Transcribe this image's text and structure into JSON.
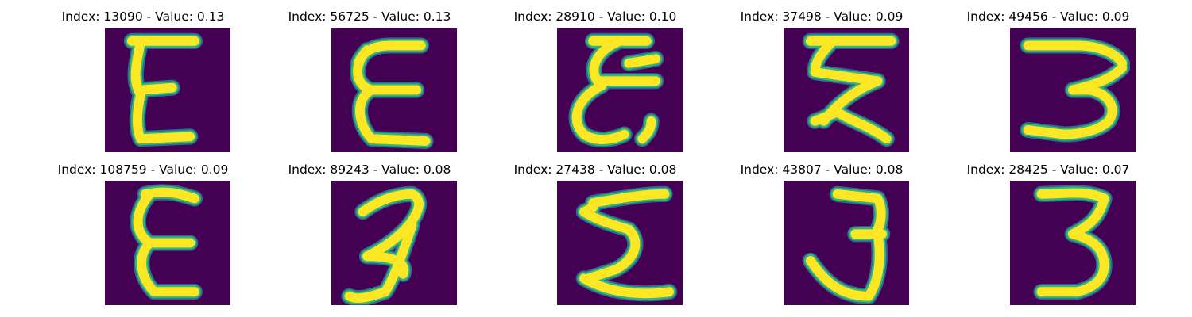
{
  "grid": {
    "rows": 2,
    "cols": 5,
    "title_prefix": "Index: ",
    "title_separator": " - Value: ",
    "colormap": "viridis",
    "colors": {
      "background": "#440154",
      "stroke_edge": "#31688e",
      "stroke_mid": "#35b779",
      "stroke_core": "#fde725"
    }
  },
  "items": [
    {
      "index": "13090",
      "value": "0.13",
      "glyph": "E-upright"
    },
    {
      "index": "56725",
      "value": "0.13",
      "glyph": "E-looped"
    },
    {
      "index": "28910",
      "value": "0.10",
      "glyph": "E-cursive"
    },
    {
      "index": "37498",
      "value": "0.09",
      "glyph": "sigma-zigzag"
    },
    {
      "index": "49456",
      "value": "0.09",
      "glyph": "three-wide"
    },
    {
      "index": "108759",
      "value": "0.09",
      "glyph": "E-narrow"
    },
    {
      "index": "89243",
      "value": "0.08",
      "glyph": "three-slanted"
    },
    {
      "index": "27438",
      "value": "0.08",
      "glyph": "sigma"
    },
    {
      "index": "43807",
      "value": "0.08",
      "glyph": "three-hooked"
    },
    {
      "index": "28425",
      "value": "0.07",
      "glyph": "three-bold"
    }
  ]
}
